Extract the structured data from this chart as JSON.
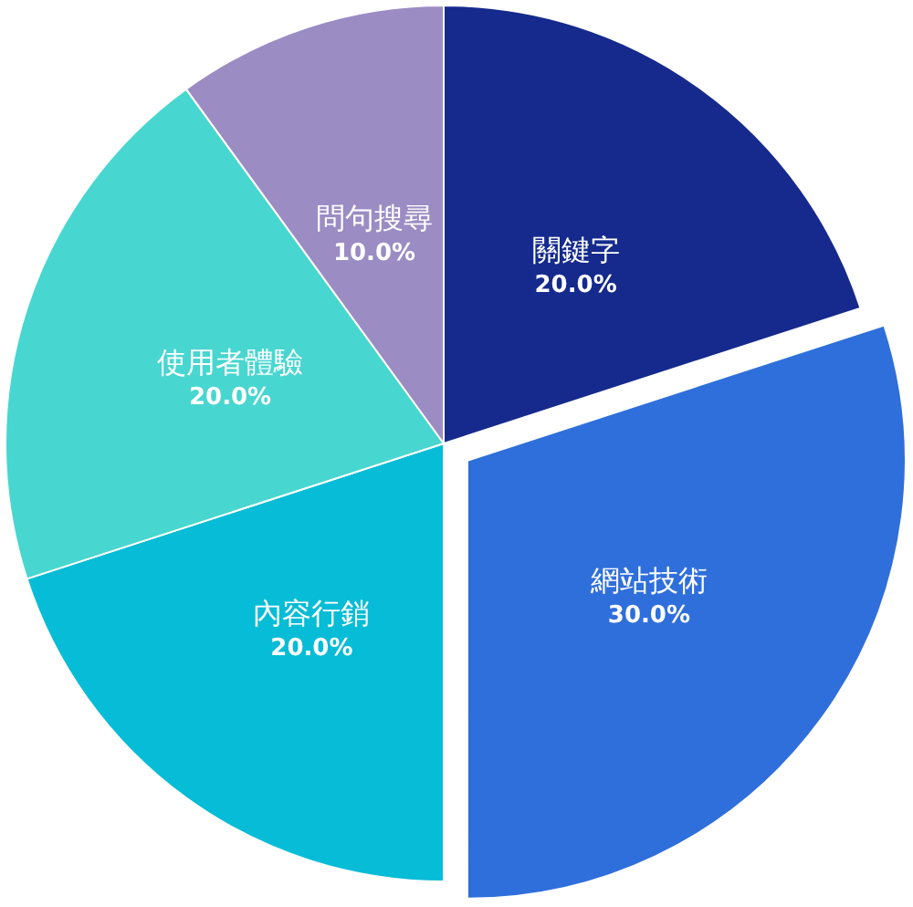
{
  "chart_data": {
    "type": "pie",
    "categories": [
      "關鍵字",
      "網站技術",
      "內容行銷",
      "使用者體驗",
      "問句搜尋"
    ],
    "values": [
      20,
      30,
      20,
      20,
      10
    ],
    "value_labels": [
      "20.0%",
      "30.0%",
      "20.0%",
      "20.0%",
      "10.0%"
    ],
    "colors": [
      "#152a8c",
      "#2f6fdc",
      "#07bcd6",
      "#48d6d0",
      "#9b8cc4"
    ],
    "legend": false
  }
}
